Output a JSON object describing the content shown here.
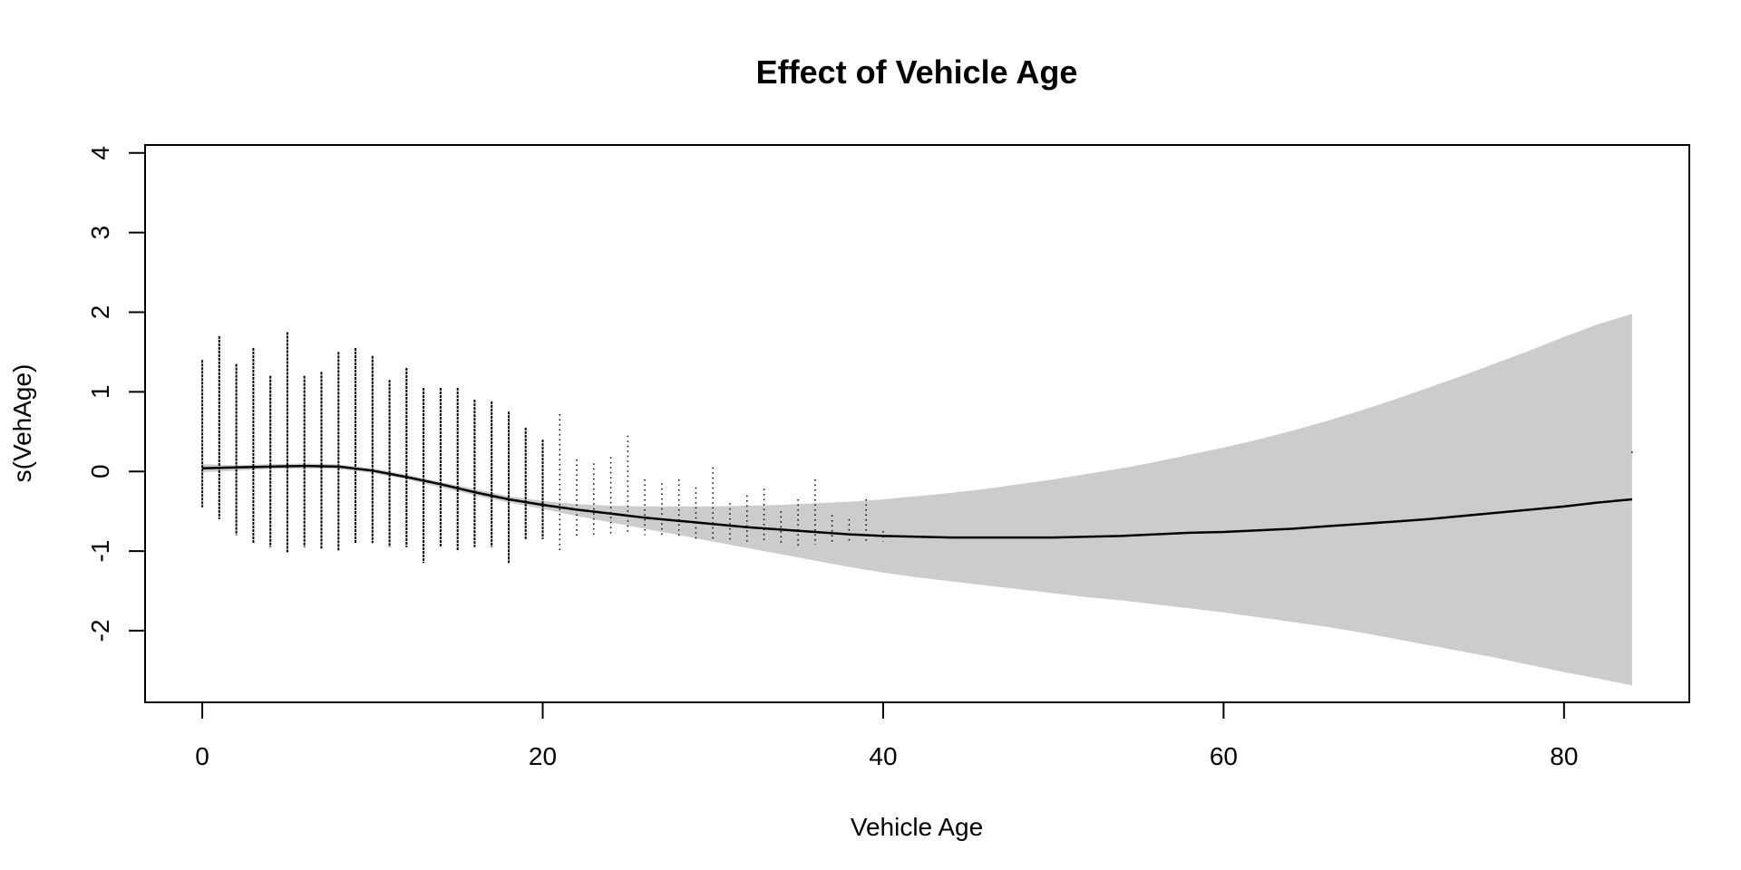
{
  "colors": {
    "band": "#cccccc",
    "line": "#000000",
    "points": "#000000",
    "axes": "#000000"
  },
  "chart_data": {
    "type": "line",
    "title": "Effect of Vehicle Age",
    "xlabel": "Vehicle Age",
    "ylabel": "s(VehAge)",
    "xlim": [
      -3.36,
      87.36
    ],
    "ylim": [
      -2.9,
      4.1
    ],
    "xticks": [
      0,
      20,
      40,
      60,
      80
    ],
    "yticks": [
      -2,
      -1,
      0,
      1,
      2,
      3,
      4
    ],
    "grid": false,
    "legend": "none",
    "series": [
      {
        "role": "smooth",
        "x": [
          0,
          2,
          4,
          6,
          8,
          10,
          12,
          14,
          16,
          18,
          20,
          22,
          24,
          26,
          28,
          30,
          32,
          34,
          36,
          38,
          40,
          42,
          44,
          46,
          48,
          50,
          52,
          54,
          56,
          58,
          60,
          62,
          64,
          66,
          68,
          70,
          72,
          74,
          76,
          78,
          80,
          82,
          84
        ],
        "values": [
          0.04,
          0.05,
          0.06,
          0.07,
          0.06,
          0.01,
          -0.07,
          -0.16,
          -0.26,
          -0.35,
          -0.42,
          -0.48,
          -0.53,
          -0.58,
          -0.62,
          -0.66,
          -0.7,
          -0.73,
          -0.76,
          -0.79,
          -0.81,
          -0.82,
          -0.83,
          -0.83,
          -0.83,
          -0.83,
          -0.82,
          -0.81,
          -0.79,
          -0.77,
          -0.76,
          -0.74,
          -0.72,
          -0.69,
          -0.66,
          -0.63,
          -0.6,
          -0.56,
          -0.52,
          -0.48,
          -0.44,
          -0.39,
          -0.35
        ]
      },
      {
        "role": "confidence-band",
        "x": [
          0,
          2,
          4,
          6,
          8,
          10,
          12,
          14,
          16,
          18,
          20,
          22,
          24,
          26,
          28,
          30,
          32,
          34,
          36,
          38,
          40,
          42,
          44,
          46,
          48,
          50,
          52,
          54,
          56,
          58,
          60,
          62,
          64,
          66,
          68,
          70,
          72,
          74,
          76,
          78,
          80,
          82,
          84
        ],
        "lower": [
          -0.01,
          0.01,
          0.03,
          0.04,
          0.03,
          -0.02,
          -0.1,
          -0.2,
          -0.3,
          -0.39,
          -0.47,
          -0.56,
          -0.64,
          -0.72,
          -0.8,
          -0.88,
          -0.96,
          -1.04,
          -1.12,
          -1.2,
          -1.27,
          -1.33,
          -1.38,
          -1.43,
          -1.48,
          -1.53,
          -1.58,
          -1.62,
          -1.67,
          -1.72,
          -1.77,
          -1.83,
          -1.89,
          -1.95,
          -2.02,
          -2.1,
          -2.18,
          -2.26,
          -2.34,
          -2.43,
          -2.52,
          -2.6,
          -2.69
        ],
        "upper": [
          0.09,
          0.08,
          0.09,
          0.1,
          0.09,
          0.04,
          -0.04,
          -0.13,
          -0.22,
          -0.31,
          -0.37,
          -0.41,
          -0.43,
          -0.44,
          -0.44,
          -0.44,
          -0.43,
          -0.42,
          -0.4,
          -0.38,
          -0.35,
          -0.31,
          -0.27,
          -0.22,
          -0.16,
          -0.1,
          -0.03,
          0.04,
          0.12,
          0.21,
          0.3,
          0.4,
          0.51,
          0.63,
          0.76,
          0.9,
          1.05,
          1.2,
          1.36,
          1.52,
          1.69,
          1.85,
          1.98
        ]
      },
      {
        "role": "partial-residuals",
        "columns": [
          {
            "x": 0,
            "min": -0.45,
            "max": 1.4
          },
          {
            "x": 1,
            "min": -0.6,
            "max": 1.7
          },
          {
            "x": 2,
            "min": -0.8,
            "max": 1.35
          },
          {
            "x": 3,
            "min": -0.9,
            "max": 1.55
          },
          {
            "x": 4,
            "min": -0.95,
            "max": 1.2
          },
          {
            "x": 5,
            "min": -1.02,
            "max": 1.75
          },
          {
            "x": 6,
            "min": -0.95,
            "max": 1.2
          },
          {
            "x": 7,
            "min": -0.98,
            "max": 1.25
          },
          {
            "x": 8,
            "min": -1.0,
            "max": 1.5
          },
          {
            "x": 9,
            "min": -0.9,
            "max": 1.55
          },
          {
            "x": 10,
            "min": -0.9,
            "max": 1.45
          },
          {
            "x": 11,
            "min": -0.95,
            "max": 1.15
          },
          {
            "x": 12,
            "min": -0.95,
            "max": 1.3
          },
          {
            "x": 13,
            "min": -1.15,
            "max": 1.05
          },
          {
            "x": 14,
            "min": -0.95,
            "max": 1.05
          },
          {
            "x": 15,
            "min": -1.0,
            "max": 1.05
          },
          {
            "x": 16,
            "min": -0.95,
            "max": 0.9
          },
          {
            "x": 17,
            "min": -0.95,
            "max": 0.88
          },
          {
            "x": 18,
            "min": -1.15,
            "max": 0.75
          },
          {
            "x": 19,
            "min": -0.85,
            "max": 0.55
          },
          {
            "x": 20,
            "min": -0.85,
            "max": 0.4
          },
          {
            "x": 21,
            "min": -1.0,
            "max": 0.72
          },
          {
            "x": 22,
            "min": -0.85,
            "max": 0.15
          },
          {
            "x": 23,
            "min": -0.8,
            "max": 0.1
          },
          {
            "x": 24,
            "min": -0.8,
            "max": 0.18
          },
          {
            "x": 25,
            "min": -0.78,
            "max": 0.45
          },
          {
            "x": 26,
            "min": -0.8,
            "max": -0.1
          },
          {
            "x": 27,
            "min": -0.82,
            "max": -0.15
          },
          {
            "x": 28,
            "min": -0.82,
            "max": -0.1
          },
          {
            "x": 29,
            "min": -0.85,
            "max": -0.2
          },
          {
            "x": 30,
            "min": -0.85,
            "max": 0.05
          },
          {
            "x": 31,
            "min": -0.88,
            "max": -0.4
          },
          {
            "x": 32,
            "min": -0.88,
            "max": -0.3
          },
          {
            "x": 33,
            "min": -0.9,
            "max": -0.22
          },
          {
            "x": 34,
            "min": -0.9,
            "max": -0.5
          },
          {
            "x": 35,
            "min": -0.95,
            "max": -0.35
          },
          {
            "x": 36,
            "min": -0.92,
            "max": -0.1
          },
          {
            "x": 37,
            "min": -0.9,
            "max": -0.55
          },
          {
            "x": 38,
            "min": -0.9,
            "max": -0.6
          },
          {
            "x": 39,
            "min": -0.9,
            "max": -0.35
          },
          {
            "x": 40,
            "min": -0.88,
            "max": -0.75
          },
          {
            "x": 84,
            "min": 0.2,
            "max": 0.25
          }
        ]
      }
    ]
  }
}
